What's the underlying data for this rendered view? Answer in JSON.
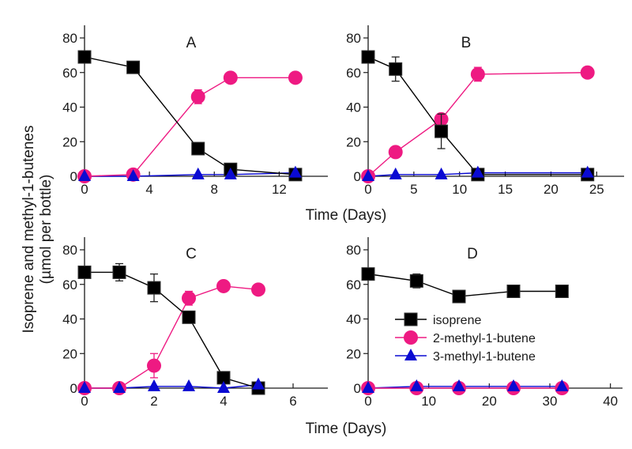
{
  "figure": {
    "ylabel_line1": "Isoprene and methyl-1-butenes",
    "ylabel_line2": "(µmol per bottle)",
    "xlabel_top": "Time (Days)",
    "xlabel_bottom": "Time (Days)"
  },
  "legend": {
    "placement": "panel D, middle-left",
    "items": [
      {
        "label": "isoprene",
        "marker": "square",
        "color": "#000000"
      },
      {
        "label": "2-methyl-1-butene",
        "marker": "circle",
        "color": "#ee1a82"
      },
      {
        "label": "3-methyl-1-butene",
        "marker": "triangle",
        "color": "#0a0ad2"
      }
    ]
  },
  "colors": {
    "isoprene": "#000000",
    "2-methyl-1-butene": "#ee1a82",
    "3-methyl-1-butene": "#0a0ad2",
    "axis": "#1a1a1a"
  },
  "chart_data": [
    {
      "type": "line",
      "panel": "A",
      "title": "A",
      "xlabel": "Time (Days)",
      "ylabel": "Isoprene and methyl-1-butenes (µmol per bottle)",
      "xlim": [
        0,
        15
      ],
      "ylim": [
        0,
        90
      ],
      "xticks": [
        0,
        4,
        8,
        12
      ],
      "yticks": [
        0,
        20,
        40,
        60,
        80
      ],
      "grid": false,
      "series": [
        {
          "name": "isoprene",
          "x": [
            0,
            3,
            7,
            9,
            13
          ],
          "y": [
            69,
            63,
            16,
            4,
            1
          ],
          "err": [
            2,
            3,
            2,
            1,
            0
          ]
        },
        {
          "name": "2-methyl-1-butene",
          "x": [
            0,
            3,
            7,
            9,
            13
          ],
          "y": [
            0,
            1,
            46,
            57,
            57
          ],
          "err": [
            0,
            0,
            4,
            1,
            1
          ]
        },
        {
          "name": "3-methyl-1-butene",
          "x": [
            0,
            3,
            7,
            9,
            13
          ],
          "y": [
            0,
            0,
            1,
            1,
            2
          ],
          "err": [
            0,
            0,
            0,
            0,
            0
          ]
        }
      ]
    },
    {
      "type": "line",
      "panel": "B",
      "title": "B",
      "xlabel": "Time (Days)",
      "ylabel": "Isoprene and methyl-1-butenes (µmol per bottle)",
      "xlim": [
        0,
        28
      ],
      "ylim": [
        0,
        90
      ],
      "xticks": [
        0,
        5,
        10,
        15,
        20,
        25
      ],
      "yticks": [
        0,
        20,
        40,
        60,
        80
      ],
      "grid": false,
      "series": [
        {
          "name": "isoprene",
          "x": [
            0,
            3,
            8,
            12,
            24
          ],
          "y": [
            69,
            62,
            26,
            1,
            1
          ],
          "err": [
            2,
            7,
            10,
            0,
            0
          ]
        },
        {
          "name": "2-methyl-1-butene",
          "x": [
            0,
            3,
            8,
            12,
            24
          ],
          "y": [
            0,
            14,
            33,
            59,
            60
          ],
          "err": [
            0,
            1,
            2,
            4,
            1
          ]
        },
        {
          "name": "3-methyl-1-butene",
          "x": [
            0,
            3,
            8,
            12,
            24
          ],
          "y": [
            0,
            1,
            1,
            2,
            2
          ],
          "err": [
            0,
            0,
            0,
            0,
            0
          ]
        }
      ]
    },
    {
      "type": "line",
      "panel": "C",
      "title": "C",
      "xlabel": "Time (Days)",
      "ylabel": "Isoprene and methyl-1-butenes (µmol per bottle)",
      "xlim": [
        0,
        7
      ],
      "ylim": [
        0,
        90
      ],
      "xticks": [
        0,
        2,
        4,
        6
      ],
      "yticks": [
        0,
        20,
        40,
        60,
        80
      ],
      "grid": false,
      "series": [
        {
          "name": "isoprene",
          "x": [
            0,
            1,
            2,
            3,
            4,
            5
          ],
          "y": [
            67,
            67,
            58,
            41,
            6,
            0
          ],
          "err": [
            1,
            5,
            8,
            1,
            1,
            0
          ]
        },
        {
          "name": "2-methyl-1-butene",
          "x": [
            0,
            1,
            2,
            3,
            4,
            5
          ],
          "y": [
            0,
            0,
            13,
            52,
            59,
            57
          ],
          "err": [
            0,
            0,
            7,
            4,
            1,
            1
          ]
        },
        {
          "name": "3-methyl-1-butene",
          "x": [
            0,
            1,
            2,
            3,
            4,
            5
          ],
          "y": [
            0,
            0,
            1,
            1,
            0,
            2
          ],
          "err": [
            0,
            0,
            0,
            0,
            0,
            0
          ]
        }
      ]
    },
    {
      "type": "line",
      "panel": "D",
      "title": "D",
      "xlabel": "Time (Days)",
      "ylabel": "Isoprene and methyl-1-butenes (µmol per bottle)",
      "xlim": [
        0,
        42
      ],
      "ylim": [
        0,
        90
      ],
      "xticks": [
        0,
        10,
        20,
        30,
        40
      ],
      "yticks": [
        0,
        20,
        40,
        60,
        80
      ],
      "grid": false,
      "series": [
        {
          "name": "isoprene",
          "x": [
            0,
            8,
            15,
            24,
            32
          ],
          "y": [
            66,
            62,
            53,
            56,
            56
          ],
          "err": [
            2,
            4,
            1,
            1,
            3
          ]
        },
        {
          "name": "2-methyl-1-butene",
          "x": [
            0,
            8,
            15,
            24,
            32
          ],
          "y": [
            0,
            0,
            0,
            0,
            0
          ],
          "err": [
            0,
            0,
            0,
            0,
            0
          ]
        },
        {
          "name": "3-methyl-1-butene",
          "x": [
            0,
            8,
            15,
            24,
            32
          ],
          "y": [
            0,
            1,
            1,
            1,
            1
          ],
          "err": [
            0,
            0,
            0,
            0,
            0
          ]
        }
      ]
    }
  ]
}
